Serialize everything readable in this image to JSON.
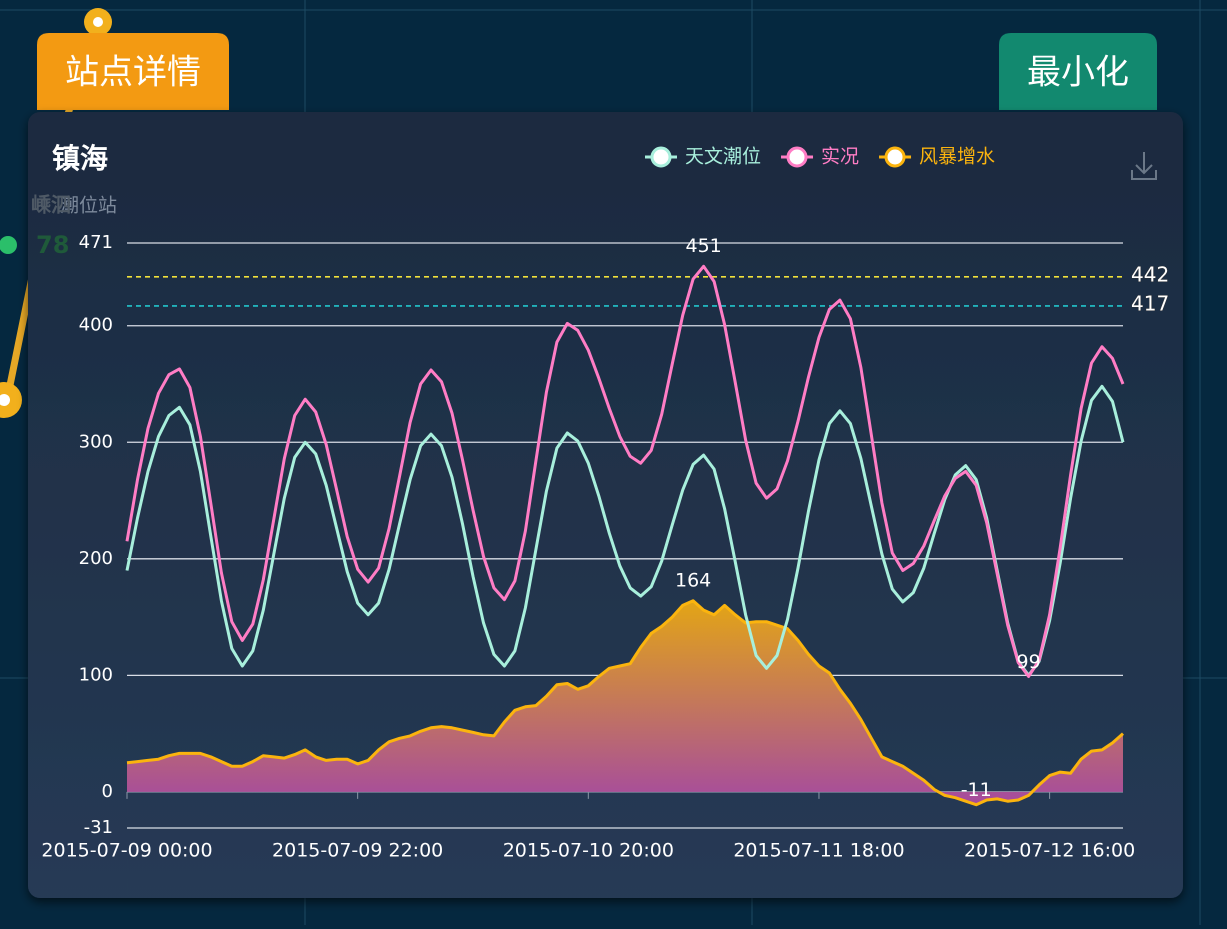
{
  "map": {
    "station_name": "嵊泗",
    "station_value": 78
  },
  "buttons": {
    "details": "站点详情",
    "minimize": "最小化"
  },
  "chart_data": {
    "type": "line",
    "title": "镇海",
    "subtitle": "潮位站",
    "categories": [
      "2015-07-09 00:00",
      null,
      null,
      null,
      null,
      null,
      null,
      null,
      null,
      null,
      null,
      null,
      null,
      null,
      null,
      null,
      null,
      null,
      null,
      null,
      null,
      null,
      "2015-07-09 22:00",
      null,
      null,
      null,
      null,
      null,
      null,
      null,
      null,
      null,
      null,
      null,
      null,
      null,
      null,
      null,
      null,
      null,
      null,
      null,
      null,
      null,
      "2015-07-10 20:00",
      null,
      null,
      null,
      null,
      null,
      null,
      null,
      null,
      null,
      null,
      null,
      null,
      null,
      null,
      null,
      null,
      null,
      null,
      null,
      null,
      null,
      "2015-07-11 18:00",
      null,
      null,
      null,
      null,
      null,
      null,
      null,
      null,
      null,
      null,
      null,
      null,
      null,
      null,
      null,
      null,
      null,
      null,
      null,
      null,
      null,
      "2015-07-12 16:00",
      null,
      null,
      null,
      null,
      null,
      null,
      null
    ],
    "series": [
      {
        "name": "天文潮位",
        "color": "#a8efdc",
        "values": [
          190,
          235,
          275,
          305,
          323,
          330,
          315,
          275,
          219,
          164,
          123,
          108,
          121,
          156,
          204,
          252,
          287,
          300,
          290,
          263,
          226,
          189,
          162,
          152,
          162,
          191,
          230,
          268,
          297,
          307,
          297,
          270,
          230,
          185,
          145,
          118,
          108,
          121,
          158,
          208,
          258,
          295,
          308,
          301,
          282,
          254,
          222,
          194,
          175,
          168,
          176,
          198,
          229,
          259,
          281,
          289,
          277,
          243,
          198,
          152,
          117,
          106,
          117,
          148,
          192,
          241,
          285,
          316,
          327,
          316,
          286,
          245,
          204,
          174,
          163,
          171,
          192,
          222,
          251,
          272,
          280,
          268,
          235,
          190,
          145,
          112,
          100,
          112,
          147,
          196,
          252,
          301,
          336,
          348,
          335,
          300
        ]
      },
      {
        "name": "实况",
        "color": "#ff7dc5",
        "label_extrema": true,
        "values": [
          215,
          268,
          312,
          342,
          358,
          363,
          347,
          305,
          247,
          188,
          146,
          130,
          144,
          182,
          234,
          286,
          323,
          337,
          326,
          298,
          259,
          219,
          191,
          180,
          192,
          226,
          271,
          317,
          350,
          362,
          352,
          325,
          285,
          242,
          202,
          175,
          165,
          181,
          224,
          284,
          343,
          386,
          402,
          396,
          379,
          355,
          329,
          305,
          288,
          282,
          293,
          324,
          367,
          409,
          440,
          451,
          438,
          401,
          352,
          302,
          265,
          252,
          260,
          284,
          318,
          356,
          390,
          414,
          422,
          406,
          364,
          306,
          248,
          205,
          190,
          196,
          211,
          233,
          254,
          269,
          275,
          263,
          231,
          187,
          143,
          111,
          99,
          113,
          152,
          209,
          272,
          329,
          368,
          382,
          372,
          350
        ]
      },
      {
        "name": "风暴增水",
        "color": "#fbb40e",
        "area": true,
        "area_colors": [
          "#e3a515",
          "#a54aa0"
        ],
        "label_extrema": true,
        "values": [
          25,
          26,
          27,
          28,
          31,
          33,
          33,
          33,
          30,
          26,
          22,
          22,
          26,
          31,
          30,
          29,
          32,
          36,
          30,
          27,
          28,
          28,
          24,
          27,
          36,
          43,
          46,
          48,
          52,
          55,
          56,
          55,
          53,
          51,
          49,
          48,
          60,
          70,
          73,
          74,
          82,
          92,
          93,
          88,
          91,
          99,
          106,
          108,
          110,
          124,
          136,
          142,
          150,
          160,
          164,
          156,
          152,
          160,
          152,
          145,
          146,
          146,
          143,
          140,
          130,
          118,
          108,
          102,
          88,
          76,
          62,
          46,
          30,
          26,
          22,
          16,
          10,
          2,
          -3,
          -5,
          -8,
          -11,
          -7,
          -6,
          -8,
          -7,
          -3,
          6,
          14,
          17,
          16,
          28,
          35,
          36,
          42,
          50
        ]
      }
    ],
    "mark_lines": [
      {
        "value": 442,
        "color": "#f2e23a"
      },
      {
        "value": 417,
        "color": "#22c5cc"
      }
    ],
    "ylim": [
      -31,
      471
    ],
    "yticks": [
      -31,
      0,
      100,
      200,
      300,
      400,
      471
    ],
    "grid": true,
    "legend": "top"
  }
}
